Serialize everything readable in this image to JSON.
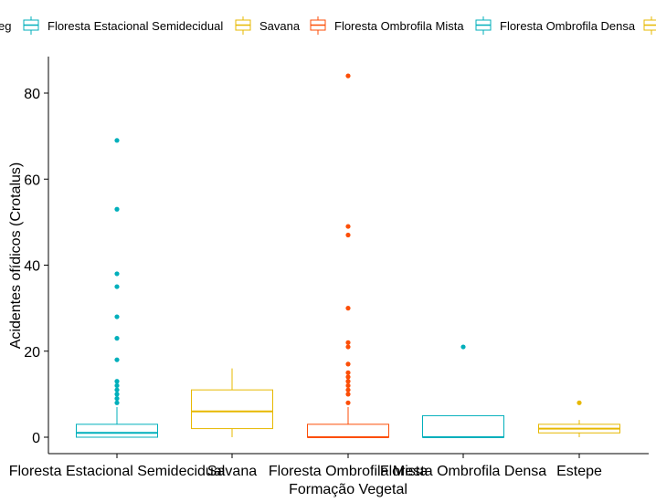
{
  "chart_data": {
    "type": "box",
    "title": "",
    "xlabel": "Formação Vegetal",
    "ylabel": "Acidentes ofídicos (Crotalus)",
    "ylim": [
      0,
      88
    ],
    "yticks": [
      0,
      20,
      40,
      60,
      80
    ],
    "grid": false,
    "legend": {
      "position": "top",
      "title_fragment": "eg",
      "entries": [
        {
          "label": "Floresta Estacional Semidecidual",
          "color": "#00AFBB"
        },
        {
          "label": "Savana",
          "color": "#E7B800"
        },
        {
          "label": "Floresta Ombrofila Mista",
          "color": "#FC4E07"
        },
        {
          "label": "Floresta Ombrofila Densa",
          "color": "#00AFBB"
        },
        {
          "label": "",
          "color": "#E7B800"
        }
      ]
    },
    "categories": [
      "Floresta Estacional Semidecidual",
      "Savana",
      "Floresta Ombrofila Mista",
      "Floresta Ombrofila Densa",
      "Estepe"
    ],
    "boxes": [
      {
        "category": "Floresta Estacional Semidecidual",
        "color": "#00AFBB",
        "min": 0,
        "q1": 0,
        "median": 1,
        "q3": 3,
        "max": 7,
        "outliers": [
          8,
          9,
          10,
          11,
          12,
          13,
          18,
          23,
          28,
          35,
          38,
          53,
          69
        ]
      },
      {
        "category": "Savana",
        "color": "#E7B800",
        "min": 0,
        "q1": 2,
        "median": 6,
        "q3": 11,
        "max": 16,
        "outliers": []
      },
      {
        "category": "Floresta Ombrofila Mista",
        "color": "#FC4E07",
        "min": 0,
        "q1": 0,
        "median": 0,
        "q3": 3,
        "max": 7,
        "outliers": [
          8,
          10,
          11,
          12,
          13,
          14,
          15,
          17,
          21,
          22,
          30,
          47,
          49,
          84
        ]
      },
      {
        "category": "Floresta Ombrofila Densa",
        "color": "#00AFBB",
        "min": 0,
        "q1": 0,
        "median": 0,
        "q3": 5,
        "max": 5,
        "outliers": [
          21
        ]
      },
      {
        "category": "Estepe",
        "color": "#E7B800",
        "min": 0,
        "q1": 1,
        "median": 2,
        "q3": 3,
        "max": 4,
        "outliers": [
          8
        ]
      }
    ]
  }
}
